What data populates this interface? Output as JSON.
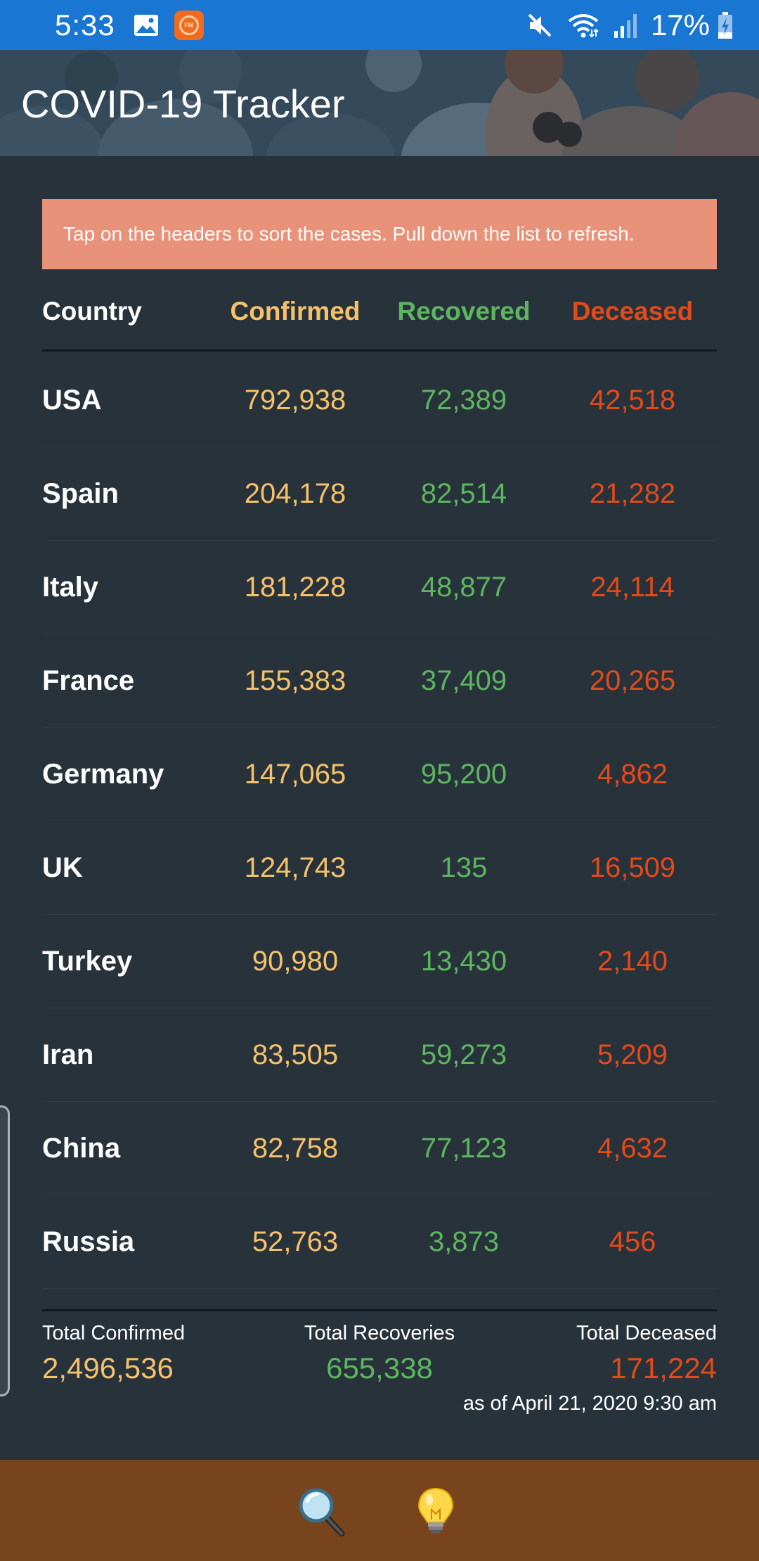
{
  "status_bar": {
    "time": "5:33",
    "battery_percent": "17%",
    "icons": [
      "image-icon",
      "radio-fm-icon",
      "mute-icon",
      "wifi-icon",
      "signal-icon",
      "battery-charging-icon"
    ]
  },
  "header": {
    "title": "COVID-19 Tracker"
  },
  "banner": {
    "text": "Tap on the headers to sort the cases. Pull down the list to refresh.",
    "color": "#e8927a"
  },
  "table": {
    "headers": {
      "country": "Country",
      "confirmed": "Confirmed",
      "recovered": "Recovered",
      "deceased": "Deceased"
    },
    "rows": [
      {
        "country": "USA",
        "confirmed": "792,938",
        "recovered": "72,389",
        "deceased": "42,518"
      },
      {
        "country": "Spain",
        "confirmed": "204,178",
        "recovered": "82,514",
        "deceased": "21,282"
      },
      {
        "country": "Italy",
        "confirmed": "181,228",
        "recovered": "48,877",
        "deceased": "24,114"
      },
      {
        "country": "France",
        "confirmed": "155,383",
        "recovered": "37,409",
        "deceased": "20,265"
      },
      {
        "country": "Germany",
        "confirmed": "147,065",
        "recovered": "95,200",
        "deceased": "4,862"
      },
      {
        "country": "UK",
        "confirmed": "124,743",
        "recovered": "135",
        "deceased": "16,509"
      },
      {
        "country": "Turkey",
        "confirmed": "90,980",
        "recovered": "13,430",
        "deceased": "2,140"
      },
      {
        "country": "Iran",
        "confirmed": "83,505",
        "recovered": "59,273",
        "deceased": "5,209"
      },
      {
        "country": "China",
        "confirmed": "82,758",
        "recovered": "77,123",
        "deceased": "4,632"
      },
      {
        "country": "Russia",
        "confirmed": "52,763",
        "recovered": "3,873",
        "deceased": "456"
      }
    ]
  },
  "totals": {
    "confirmed_label": "Total Confirmed",
    "confirmed_value": "2,496,536",
    "recovered_label": "Total Recoveries",
    "recovered_value": "655,338",
    "deceased_label": "Total Deceased",
    "deceased_value": "171,224",
    "as_of": "as of April 21, 2020 9:30 am"
  },
  "bottom_bar": {
    "buttons": [
      "magnifying-glass-icon",
      "light-bulb-icon"
    ]
  },
  "colors": {
    "status_bar": "#1976d2",
    "background": "#28323b",
    "confirmed": "#f5c26b",
    "recovered": "#5cb65f",
    "deceased": "#e24a19",
    "bottom_bar": "#77441e"
  }
}
